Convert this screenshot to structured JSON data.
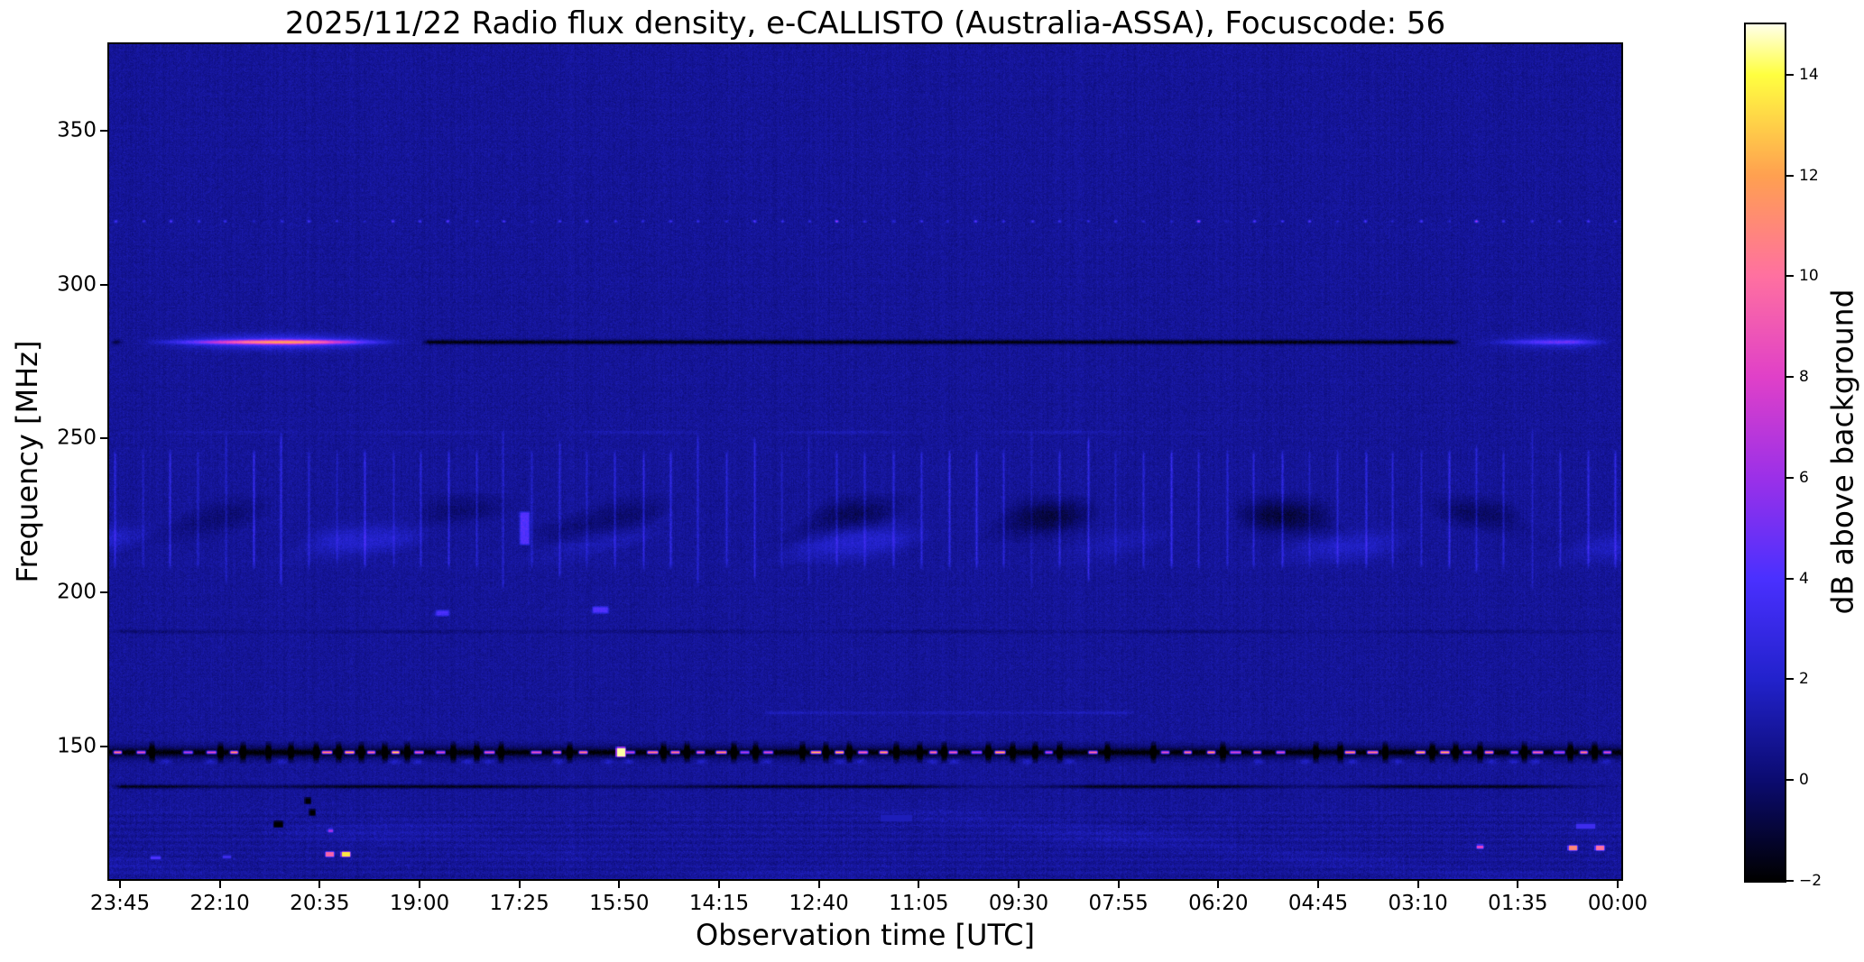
{
  "chart_data": {
    "type": "heatmap",
    "title": "2025/11/22  Radio flux density, e-CALLISTO (Australia-ASSA), Focuscode: 56",
    "xlabel": "Observation time [UTC]",
    "ylabel": "Frequency [MHz]",
    "x_ticks": [
      "23:45",
      "22:10",
      "20:35",
      "19:00",
      "17:25",
      "15:50",
      "14:15",
      "12:40",
      "11:05",
      "09:30",
      "07:55",
      "06:20",
      "04:45",
      "03:10",
      "01:35",
      "00:00"
    ],
    "x_time_direction": "decreasing-left-to-right",
    "y_ticks": [
      350,
      300,
      250,
      200,
      150
    ],
    "y_range": [
      107,
      378
    ],
    "grid": false,
    "background_db": 0.85,
    "colorbar": {
      "label": "dB above background",
      "range": [
        -2,
        15
      ],
      "ticks": [
        {
          "v": 14,
          "label": "14"
        },
        {
          "v": 12,
          "label": "12"
        },
        {
          "v": 10,
          "label": "10"
        },
        {
          "v": 8,
          "label": "8"
        },
        {
          "v": 6,
          "label": "6"
        },
        {
          "v": 4,
          "label": "4"
        },
        {
          "v": 2,
          "label": "2"
        },
        {
          "v": 0,
          "label": "0"
        },
        {
          "v": -2,
          "label": "−2"
        }
      ],
      "colormap": "gnuplot2-like",
      "stops": [
        {
          "v": -2,
          "color": "#000000"
        },
        {
          "v": 0,
          "color": "#0b0b70"
        },
        {
          "v": 2,
          "color": "#2222cc"
        },
        {
          "v": 4,
          "color": "#4a30ff"
        },
        {
          "v": 6,
          "color": "#9b30e8"
        },
        {
          "v": 8,
          "color": "#e040c8"
        },
        {
          "v": 10,
          "color": "#ff70a0"
        },
        {
          "v": 12,
          "color": "#ffa050"
        },
        {
          "v": 14,
          "color": "#ffff40"
        },
        {
          "v": 15,
          "color": "#ffffe8"
        }
      ]
    },
    "features": [
      {
        "kind": "hline_segments",
        "freq": 281.5,
        "sigma_core": 1.7,
        "sigma_halo": 5.5,
        "segments": [
          {
            "x0": 0.0,
            "x1": 0.009,
            "amp": -2.6
          },
          {
            "x0": 0.009,
            "x1": 0.206,
            "amp": 8.5,
            "shape": "glow",
            "peak": 0.115,
            "halo": 0.32
          },
          {
            "x0": 0.206,
            "x1": 0.894,
            "amp": -2.7
          },
          {
            "x0": 0.894,
            "x1": 1.0,
            "amp": 2.9,
            "shape": "glow",
            "peak": 0.962,
            "halo": 0.45
          }
        ]
      },
      {
        "kind": "dotted_row",
        "freq": 320.7,
        "spacing": 30.8,
        "amp_min": 1.0,
        "amp_max": 3.8,
        "pink_chance": 0.07,
        "pink_amp": 6.0
      },
      {
        "kind": "vstreaks",
        "freq_hi": 247,
        "freq_lo": 207.5,
        "spacing": 30.8,
        "amp_min": 0.7,
        "amp_max": 2.1
      },
      {
        "kind": "blob_band",
        "freq_hi": 231,
        "freq_lo": 217.5,
        "amp": -1.9,
        "scale": 38,
        "seed": 7
      },
      {
        "kind": "blob_band",
        "freq_hi": 222.5,
        "freq_lo": 210.5,
        "amp": 1.15,
        "scale": 55,
        "seed": 11
      },
      {
        "kind": "rect",
        "x": 0.2745,
        "freq_hi": 226.5,
        "freq_lo": 215.5,
        "w": 7,
        "amp": 3.4
      },
      {
        "kind": "rect",
        "x": 0.22,
        "freq_hi": 194.6,
        "freq_lo": 192.4,
        "w": 11,
        "amp": 3.0
      },
      {
        "kind": "rect",
        "x": 0.3246,
        "freq_hi": 195.6,
        "freq_lo": 193.2,
        "w": 14,
        "amp": 3.2
      },
      {
        "kind": "hline",
        "freq": 252.3,
        "amp": 0.75,
        "sigma": 1.2,
        "x0": 0.0,
        "x1": 0.73,
        "patchy": 0.55
      },
      {
        "kind": "hline",
        "freq": 187.5,
        "amp": -0.95,
        "sigma": 1.5,
        "x0": 0.0,
        "x1": 1.0,
        "patchy": 0.5
      },
      {
        "kind": "hline",
        "freq": 161.0,
        "amp": 0.8,
        "sigma": 1.3,
        "x0": 0.43,
        "x1": 0.68,
        "patchy": 0.3
      },
      {
        "kind": "dash_row",
        "freq": 148.3,
        "spacing": 25.8,
        "band_amp": -1.5,
        "band_sigma": 5.5,
        "core_amp": -1.4,
        "core_sigma": 2.2,
        "dash_on": 0.74,
        "dash_amp_min": 8,
        "dash_amp_max": 14.6,
        "dash_w": 6,
        "gap_amp": -2.8,
        "gap_w": 4,
        "gap_halfh": 12,
        "gap_chance": 0.55,
        "under_amp": 1.25,
        "under_chance": 0.4
      },
      {
        "kind": "hline",
        "freq": 137.2,
        "amp": -2.3,
        "sigma": 1.5,
        "x0": 0.0,
        "x1": 1.0,
        "patchy": 0.15
      },
      {
        "kind": "bottom_texture",
        "freq_hi": 129.5,
        "stripe_amp": 0.2,
        "extra_noise": 0.5,
        "cloud_amp": 0.8,
        "cloud_scale": 70,
        "seed": 19
      },
      {
        "kind": "specks",
        "points": [
          {
            "x": 0.1116,
            "freq": 124.9,
            "w": 8,
            "h": 5,
            "amp": -2.8
          },
          {
            "x": 0.131,
            "freq": 132.4,
            "w": 5,
            "h": 5,
            "amp": -2.7
          },
          {
            "x": 0.134,
            "freq": 128.6,
            "w": 5,
            "h": 5,
            "amp": -2.7
          },
          {
            "x": 0.1456,
            "freq": 115.2,
            "w": 8,
            "h": 4,
            "amp": 9.5
          },
          {
            "x": 0.1563,
            "freq": 115.2,
            "w": 9,
            "h": 4,
            "amp": 13.5
          },
          {
            "x": 0.146,
            "freq": 122.8,
            "w": 5,
            "h": 3,
            "amp": 6.0
          },
          {
            "x": 0.0304,
            "freq": 114.0,
            "w": 10,
            "h": 3,
            "amp": 4.0
          },
          {
            "x": 0.0775,
            "freq": 114.2,
            "w": 8,
            "h": 3,
            "amp": 3.2
          },
          {
            "x": 0.3385,
            "freq": 148.3,
            "w": 9,
            "h": 9,
            "amp": 14.6
          },
          {
            "x": 0.9063,
            "freq": 117.5,
            "w": 6,
            "h": 3,
            "amp": 8.0
          },
          {
            "x": 0.9678,
            "freq": 117.2,
            "w": 9,
            "h": 4,
            "amp": 11.0
          },
          {
            "x": 0.9857,
            "freq": 117.2,
            "w": 9,
            "h": 4,
            "amp": 10.0
          },
          {
            "x": 0.976,
            "freq": 124.2,
            "w": 20,
            "h": 5,
            "amp": 3.4
          },
          {
            "x": 0.52,
            "freq": 127.0,
            "w": 34,
            "h": 7,
            "amp": 1.6
          }
        ]
      }
    ]
  }
}
